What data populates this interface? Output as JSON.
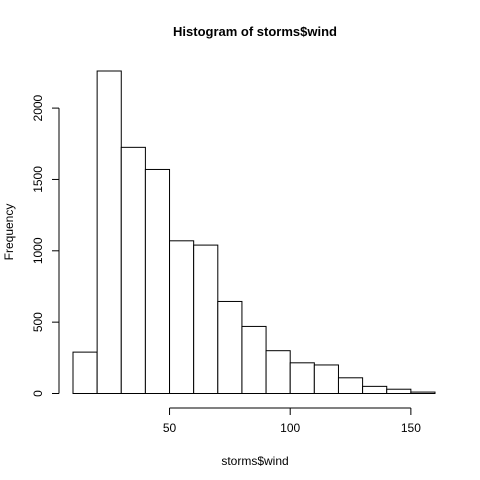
{
  "chart_data": {
    "type": "bar",
    "title": "Histogram of storms$wind",
    "xlabel": "storms$wind",
    "ylabel": "Frequency",
    "bin_edges": [
      10,
      20,
      30,
      40,
      50,
      60,
      70,
      80,
      90,
      100,
      110,
      120,
      130,
      140,
      150,
      160
    ],
    "values": [
      290,
      2260,
      1725,
      1570,
      1070,
      1040,
      645,
      470,
      300,
      215,
      200,
      110,
      50,
      30,
      10
    ],
    "xlim": [
      10,
      160
    ],
    "ylim": [
      0,
      2260
    ],
    "x_ticks": [
      50,
      100,
      150
    ],
    "x_tick_labels": [
      "50",
      "100",
      "150"
    ],
    "y_ticks": [
      0,
      500,
      1000,
      1500,
      2000
    ],
    "y_tick_labels": [
      "0",
      "500",
      "1000",
      "1500",
      "2000"
    ],
    "bar_fill": "#ffffff",
    "bar_stroke": "#000000",
    "grid": false,
    "legend": "none"
  }
}
